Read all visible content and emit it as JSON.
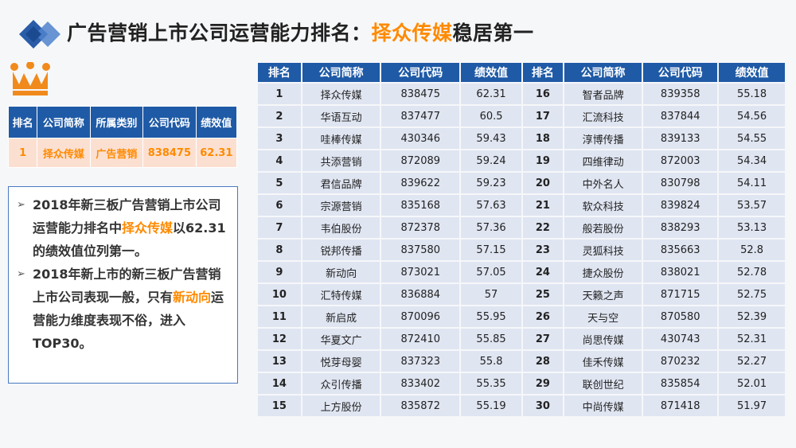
{
  "title": {
    "prefix": "广告营销上市公司运营能力排名：",
    "highlight": "择众传媒",
    "suffix": "稳居第一"
  },
  "colors": {
    "accent": "#ff8a00",
    "header_blue": "#1f5aa6",
    "row_bg": "#dfe5f1",
    "highlight_row_bg": "#fbe0d2"
  },
  "top_company": {
    "headers": [
      "排名",
      "公司简称",
      "所属类别",
      "公司代码",
      "绩效值"
    ],
    "row": [
      "1",
      "择众传媒",
      "广告营销",
      "838475",
      "62.31"
    ]
  },
  "notes": [
    {
      "segments": [
        {
          "text": "2018年新三板广告营销上市公司运营能力排名中",
          "highlight": false
        },
        {
          "text": "择众传媒",
          "highlight": true
        },
        {
          "text": "以62.31的绩效值位列第一。",
          "highlight": false
        }
      ]
    },
    {
      "segments": [
        {
          "text": "2018年新上市的新三板广告营销上市公司表现一般，只有",
          "highlight": false
        },
        {
          "text": "新动向",
          "highlight": true
        },
        {
          "text": "运营能力维度表现不俗，进入TOP30。",
          "highlight": false
        }
      ]
    }
  ],
  "ranking": {
    "headers": [
      "排名",
      "公司简称",
      "公司代码",
      "绩效值",
      "排名",
      "公司简称",
      "公司代码",
      "绩效值"
    ],
    "rows": [
      [
        "1",
        "择众传媒",
        "838475",
        "62.31",
        "16",
        "智者品牌",
        "839358",
        "55.18"
      ],
      [
        "2",
        "华语互动",
        "837477",
        "60.5",
        "17",
        "汇流科技",
        "837844",
        "54.56"
      ],
      [
        "3",
        "哇棒传媒",
        "430346",
        "59.43",
        "18",
        "淳博传播",
        "839133",
        "54.55"
      ],
      [
        "4",
        "共添营销",
        "872089",
        "59.24",
        "19",
        "四维律动",
        "872003",
        "54.34"
      ],
      [
        "5",
        "君信品牌",
        "839622",
        "59.23",
        "20",
        "中外名人",
        "830798",
        "54.11"
      ],
      [
        "6",
        "宗源营销",
        "835168",
        "57.63",
        "21",
        "软众科技",
        "839824",
        "53.57"
      ],
      [
        "7",
        "韦伯股份",
        "872378",
        "57.36",
        "22",
        "般若股份",
        "838293",
        "53.13"
      ],
      [
        "8",
        "锐邦传播",
        "837580",
        "57.15",
        "23",
        "灵狐科技",
        "835663",
        "52.8"
      ],
      [
        "9",
        "新动向",
        "873021",
        "57.05",
        "24",
        "捷众股份",
        "838021",
        "52.78"
      ],
      [
        "10",
        "汇特传媒",
        "836884",
        "57",
        "25",
        "天籁之声",
        "871715",
        "52.75"
      ],
      [
        "11",
        "新启成",
        "870096",
        "55.95",
        "26",
        "天与空",
        "870580",
        "52.39"
      ],
      [
        "12",
        "华夏文广",
        "872410",
        "55.85",
        "27",
        "尚思传媒",
        "430743",
        "52.31"
      ],
      [
        "13",
        "悦芽母婴",
        "837323",
        "55.8",
        "28",
        "佳禾传媒",
        "870232",
        "52.27"
      ],
      [
        "14",
        "众引传播",
        "833402",
        "55.35",
        "29",
        "联创世纪",
        "835854",
        "52.01"
      ],
      [
        "15",
        "上方股份",
        "835872",
        "55.19",
        "30",
        "中尚传媒",
        "871418",
        "51.97"
      ]
    ]
  }
}
